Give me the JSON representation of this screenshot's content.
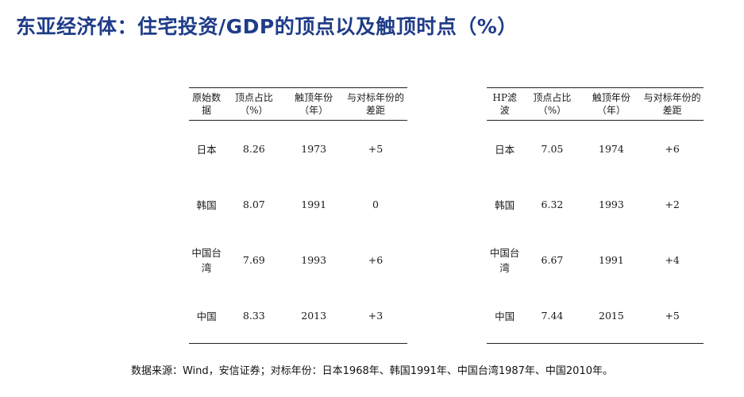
{
  "title": "东亚经济体：住宅投资/GDP的顶点以及触顶时点（%）",
  "table_raw": {
    "headers": [
      "原始数据",
      "顶点占比（%）",
      "触顶年份（年）",
      "与对标年份的差距"
    ],
    "rows": [
      [
        "日本",
        "8.26",
        "1973",
        "+5"
      ],
      [
        "韩国",
        "8.07",
        "1991",
        "0"
      ],
      [
        "中国台湾",
        "7.69",
        "1993",
        "+6"
      ],
      [
        "中国",
        "8.33",
        "2013",
        "+3"
      ]
    ]
  },
  "table_hp": {
    "headers": [
      "HP滤波",
      "顶点占比（%）",
      "触顶年份（年）",
      "与对标年份的差距"
    ],
    "rows": [
      [
        "日本",
        "7.05",
        "1974",
        "+6"
      ],
      [
        "韩国",
        "6.32",
        "1993",
        "+2"
      ],
      [
        "中国台湾",
        "6.67",
        "1991",
        "+4"
      ],
      [
        "中国",
        "7.44",
        "2015",
        "+5"
      ]
    ]
  },
  "source": "数据来源：Wind，安信证券；对标年份：日本1968年、韩国1991年、中国台湾1987年、中国2010年。"
}
